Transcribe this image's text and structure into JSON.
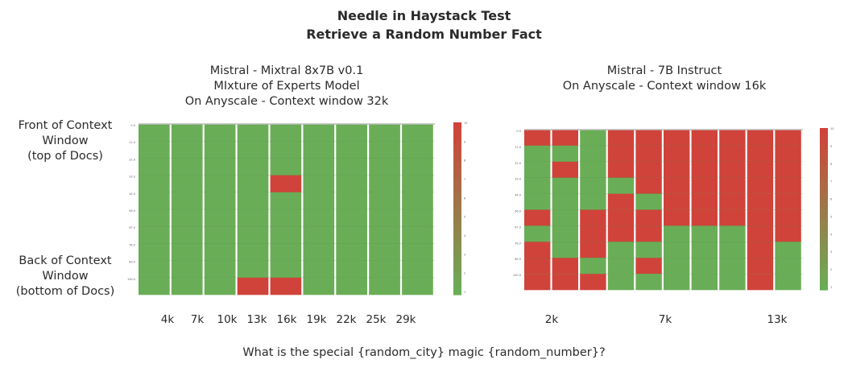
{
  "title_line1": "Needle in Haystack Test",
  "title_line2": "Retrieve a Random Number Fact",
  "left_sub": [
    "Mistral - Mixtral 8x7B v0.1",
    "MIxture of Experts Model",
    "On Anyscale - Context window 32k"
  ],
  "right_sub": [
    "Mistral - 7B Instruct",
    "On Anyscale - Context window 16k"
  ],
  "front_label": [
    "Front of Context",
    "Window",
    "(top of Docs)"
  ],
  "back_label": [
    "Back of Context",
    "Window",
    "(bottom of Docs)"
  ],
  "question": "What is the special {random_city} magic {random_number}?",
  "colors": {
    "pass": "#6aad57",
    "fail": "#d0433a",
    "grid": "#d9d9d9"
  },
  "chart_data": [
    {
      "type": "heatmap",
      "name": "Mixtral 8x7B v0.1",
      "x_tick_labels_big": [
        "4k",
        "7k",
        "10k",
        "13k",
        "16k",
        "19k",
        "22k",
        "25k",
        "29k"
      ],
      "y_labels": [
        "0.0",
        "11.0",
        "22.0",
        "33.0",
        "44.0",
        "56.0",
        "67.0",
        "78.0",
        "89.0",
        "100.0"
      ],
      "colorbar_ticks": [
        "10",
        "9",
        "8",
        "7",
        "6",
        "5",
        "4",
        "3",
        "2",
        "1"
      ],
      "scores": [
        [
          10,
          10,
          10,
          10,
          10,
          10,
          10,
          10,
          10
        ],
        [
          10,
          10,
          10,
          10,
          10,
          10,
          10,
          10,
          10
        ],
        [
          10,
          10,
          10,
          10,
          10,
          10,
          10,
          10,
          10
        ],
        [
          10,
          10,
          10,
          10,
          1,
          10,
          10,
          10,
          10
        ],
        [
          10,
          10,
          10,
          10,
          10,
          10,
          10,
          10,
          10
        ],
        [
          10,
          10,
          10,
          10,
          10,
          10,
          10,
          10,
          10
        ],
        [
          10,
          10,
          10,
          10,
          10,
          10,
          10,
          10,
          10
        ],
        [
          10,
          10,
          10,
          10,
          10,
          10,
          10,
          10,
          10
        ],
        [
          10,
          10,
          10,
          10,
          10,
          10,
          10,
          10,
          10
        ],
        [
          10,
          10,
          10,
          1,
          1,
          10,
          10,
          10,
          10
        ]
      ]
    },
    {
      "type": "heatmap",
      "name": "Mistral 7B Instruct",
      "x_tick_labels_big": [
        "2k",
        "7k",
        "13k"
      ],
      "y_labels": [
        "0.0",
        "11.0",
        "22.0",
        "33.0",
        "44.0",
        "56.0",
        "67.0",
        "78.0",
        "89.0",
        "100.0"
      ],
      "colorbar_ticks": [
        "10",
        "9",
        "8",
        "7",
        "6",
        "5",
        "4",
        "3",
        "2",
        "1"
      ],
      "scores": [
        [
          1,
          1,
          10,
          1,
          1,
          1,
          1,
          1,
          1,
          1
        ],
        [
          10,
          10,
          10,
          1,
          1,
          1,
          1,
          1,
          1,
          1
        ],
        [
          10,
          1,
          10,
          1,
          1,
          1,
          1,
          1,
          1,
          1
        ],
        [
          10,
          10,
          10,
          10,
          1,
          1,
          1,
          1,
          1,
          1
        ],
        [
          10,
          10,
          10,
          1,
          10,
          1,
          1,
          1,
          1,
          1
        ],
        [
          1,
          10,
          1,
          1,
          1,
          1,
          1,
          1,
          1,
          1
        ],
        [
          10,
          10,
          1,
          1,
          1,
          10,
          10,
          10,
          1,
          1
        ],
        [
          1,
          10,
          1,
          10,
          10,
          10,
          10,
          10,
          1,
          10
        ],
        [
          1,
          1,
          10,
          10,
          1,
          10,
          10,
          10,
          1,
          10
        ],
        [
          1,
          1,
          1,
          10,
          10,
          10,
          10,
          10,
          1,
          10
        ]
      ]
    }
  ]
}
